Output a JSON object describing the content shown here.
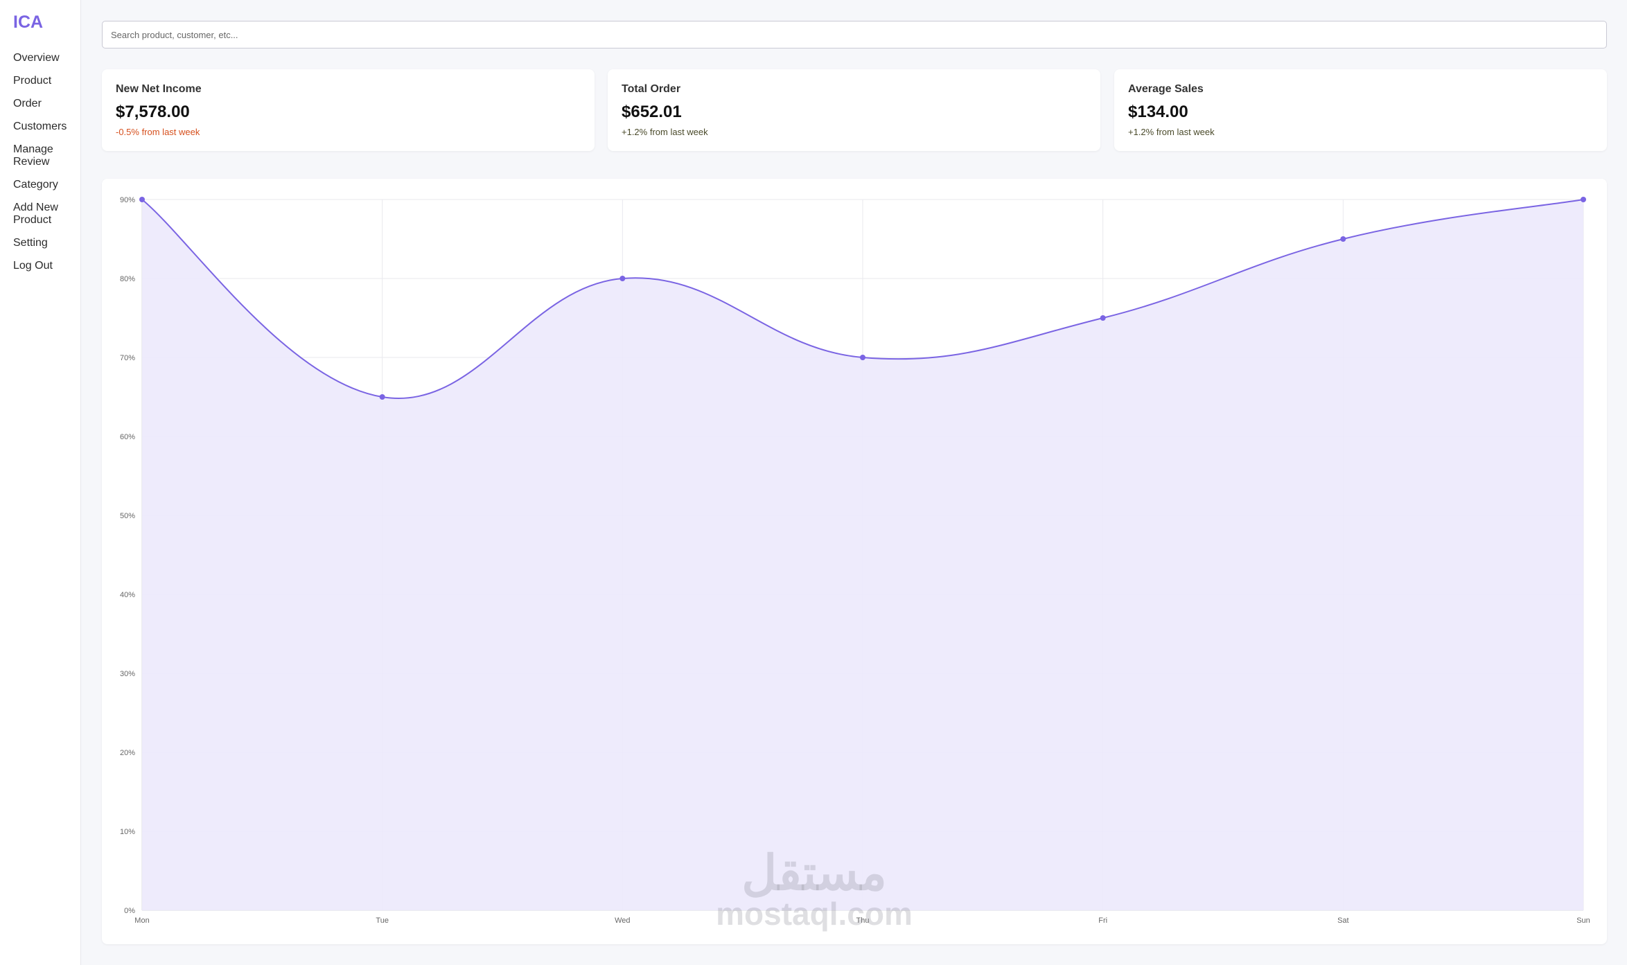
{
  "brand": {
    "logo": "ICA",
    "accent": "#7a64e3"
  },
  "sidebar": {
    "items": [
      {
        "label": "Overview"
      },
      {
        "label": "Product"
      },
      {
        "label": "Order"
      },
      {
        "label": "Customers"
      },
      {
        "label": "Manage Review"
      },
      {
        "label": "Category"
      },
      {
        "label": "Add New Product"
      },
      {
        "label": "Setting"
      },
      {
        "label": "Log Out"
      }
    ]
  },
  "search": {
    "placeholder": "Search product, customer, etc...",
    "value": ""
  },
  "cards": [
    {
      "title": "New Net Income",
      "value": "$7,578.00",
      "change": "-0.5% from last week",
      "trend": "negative"
    },
    {
      "title": "Total Order",
      "value": "$652.01",
      "change": "+1.2% from last week",
      "trend": "positive"
    },
    {
      "title": "Average Sales",
      "value": "$134.00",
      "change": "+1.2% from last week",
      "trend": "positive"
    }
  ],
  "chart_data": {
    "type": "area",
    "categories": [
      "Mon",
      "Tue",
      "Wed",
      "Thu",
      "Fri",
      "Sat",
      "Sun"
    ],
    "series": [
      {
        "values": [
          90,
          65,
          80,
          70,
          75,
          85,
          90
        ]
      }
    ],
    "ylim": [
      0,
      90
    ],
    "yticks": [
      "0%",
      "10%",
      "20%",
      "30%",
      "40%",
      "50%",
      "60%",
      "70%",
      "80%",
      "90%"
    ],
    "grid": true,
    "line_color": "#7a64e3",
    "fill_color": "#ece9fc"
  },
  "watermark": {
    "logo": "مستقل",
    "text": "mostaql.com"
  }
}
